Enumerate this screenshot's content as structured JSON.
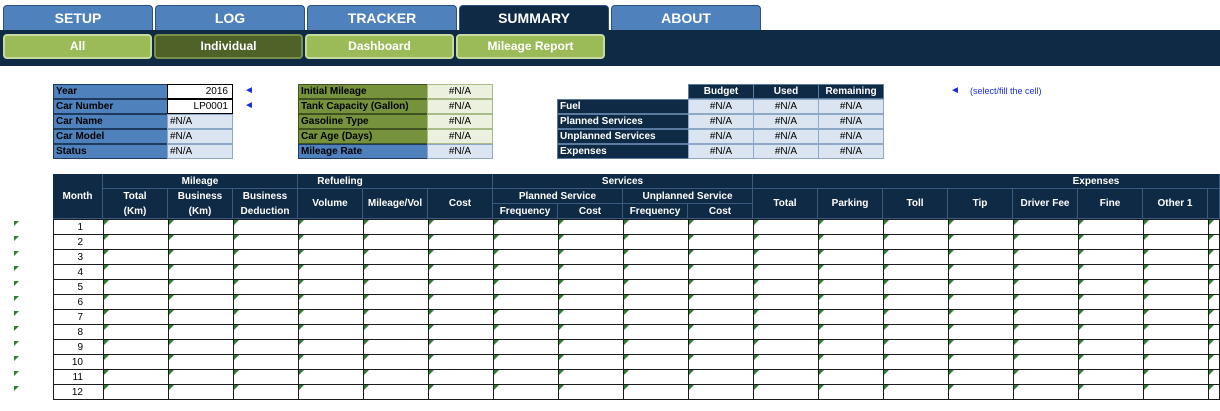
{
  "tabs": [
    {
      "label": "SETUP",
      "active": false
    },
    {
      "label": "LOG",
      "active": false
    },
    {
      "label": "TRACKER",
      "active": false
    },
    {
      "label": "SUMMARY",
      "active": true
    },
    {
      "label": "ABOUT",
      "active": false
    }
  ],
  "subtabs": [
    {
      "label": "All",
      "active": false
    },
    {
      "label": "Individual",
      "active": true
    },
    {
      "label": "Dashboard",
      "active": false
    },
    {
      "label": "Mileage Report",
      "active": false
    }
  ],
  "info_left": [
    {
      "label": "Year",
      "value": "2016"
    },
    {
      "label": "Car Number",
      "value": "LP0001"
    },
    {
      "label": "Car Name",
      "value": "#N/A"
    },
    {
      "label": "Car Model",
      "value": "#N/A"
    },
    {
      "label": "Status",
      "value": "#N/A"
    }
  ],
  "info_mid": [
    {
      "label": "Initial Mileage",
      "value": "#N/A"
    },
    {
      "label": "Tank Capacity (Gallon)",
      "value": "#N/A"
    },
    {
      "label": "Gasoline Type",
      "value": "#N/A"
    },
    {
      "label": "Car Age (Days)",
      "value": "#N/A"
    },
    {
      "label": "Mileage Rate",
      "value": "#N/A"
    }
  ],
  "budget_table": {
    "headers": [
      "Budget",
      "Used",
      "Remaining"
    ],
    "rows": [
      {
        "label": "Fuel",
        "values": [
          "#N/A",
          "#N/A",
          "#N/A"
        ]
      },
      {
        "label": "Planned Services",
        "values": [
          "#N/A",
          "#N/A",
          "#N/A"
        ]
      },
      {
        "label": "Unplanned Services",
        "values": [
          "#N/A",
          "#N/A",
          "#N/A"
        ]
      },
      {
        "label": "Expenses",
        "values": [
          "#N/A",
          "#N/A",
          "#N/A"
        ]
      }
    ]
  },
  "arrow_glyph": "◄",
  "hint": "(select/fill the cell)",
  "main_table": {
    "groups": {
      "month": "Month",
      "mileage": "Mileage",
      "refueling": "Refueling",
      "services": "Services",
      "expenses": "Expenses",
      "planned": "Planned Service",
      "unplanned": "Unplanned Service"
    },
    "columns": {
      "total_km_1": "Total",
      "total_km_2": "(Km)",
      "business_km_1": "Business",
      "business_km_2": "(Km)",
      "business_deduction_1": "Business",
      "business_deduction_2": "Deduction",
      "volume": "Volume",
      "mileage_vol": "Mileage/Vol",
      "cost": "Cost",
      "ps_frequency": "Frequency",
      "ps_cost": "Cost",
      "us_frequency": "Frequency",
      "us_cost": "Cost",
      "exp_total": "Total",
      "parking": "Parking",
      "toll": "Toll",
      "tip": "Tip",
      "driver_fee": "Driver Fee",
      "fine": "Fine",
      "other1": "Other 1"
    },
    "months": [
      "1",
      "2",
      "3",
      "4",
      "5",
      "6",
      "7",
      "8",
      "9",
      "10",
      "11",
      "12"
    ]
  },
  "colors": {
    "navy": "#0f2a44",
    "tab_blue": "#4f81bd",
    "subtab_green": "#9bbb59",
    "subtab_active": "#4f6228",
    "label_green": "#76923c",
    "value_lightblue": "#dbe5f1",
    "hint_blue": "#1a2bd6"
  }
}
